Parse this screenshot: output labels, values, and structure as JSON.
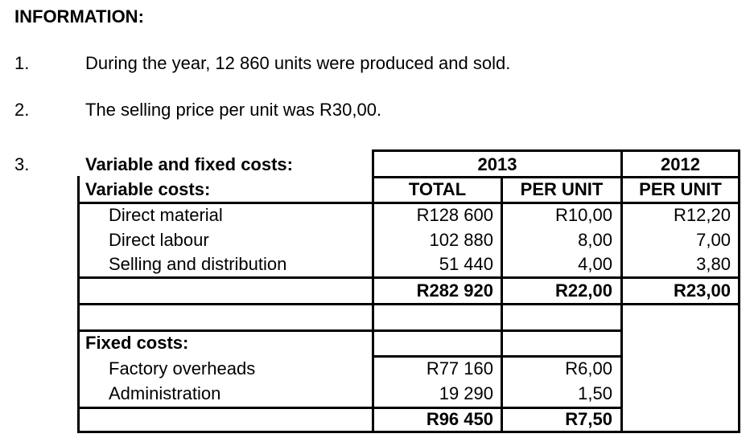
{
  "heading": "INFORMATION:",
  "items": [
    {
      "number": "1.",
      "text": "During the year, 12 860 units were produced and sold."
    },
    {
      "number": "2.",
      "text": "The selling price per unit was R30,00."
    },
    {
      "number": "3.",
      "text": "Variable and fixed costs:"
    }
  ],
  "table": {
    "year_2013": "2013",
    "year_2012": "2012",
    "col_total": "TOTAL",
    "col_per_unit_2013": "PER UNIT",
    "col_per_unit_2012": "PER UNIT",
    "variable_label": "Variable costs:",
    "variable_rows": [
      {
        "label": "Direct material",
        "total": "R128 600",
        "per_unit_2013": "R10,00",
        "per_unit_2012": "R12,20"
      },
      {
        "label": "Direct labour",
        "total": "102 880",
        "per_unit_2013": "8,00",
        "per_unit_2012": "7,00"
      },
      {
        "label": "Selling and distribution",
        "total": "51 440",
        "per_unit_2013": "4,00",
        "per_unit_2012": "3,80"
      }
    ],
    "variable_totals": {
      "total": "R282 920",
      "per_unit_2013": "R22,00",
      "per_unit_2012": "R23,00"
    },
    "fixed_label": "Fixed costs:",
    "fixed_rows": [
      {
        "label": "Factory overheads",
        "total": "R77 160",
        "per_unit_2013": "R6,00"
      },
      {
        "label": "Administration",
        "total": "19 290",
        "per_unit_2013": "1,50"
      }
    ],
    "fixed_totals": {
      "total": "R96 450",
      "per_unit_2013": "R7,50"
    }
  }
}
